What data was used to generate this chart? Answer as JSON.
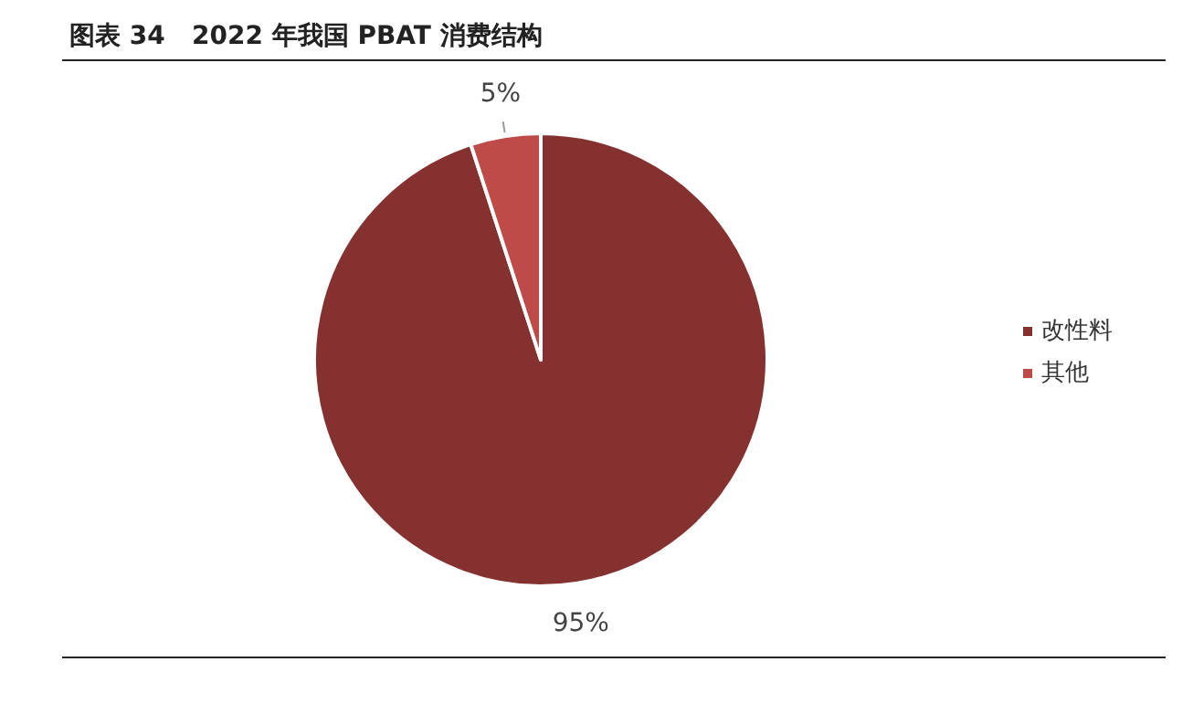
{
  "chart_data": {
    "type": "pie",
    "title": "图表 34   2022 年我国 PBAT 消费结构",
    "categories": [
      "改性料",
      "其他"
    ],
    "values": [
      95,
      5
    ],
    "colors": [
      "#843130",
      "#be4b48"
    ],
    "value_labels": [
      "95%",
      "5%"
    ],
    "legend": "right"
  }
}
